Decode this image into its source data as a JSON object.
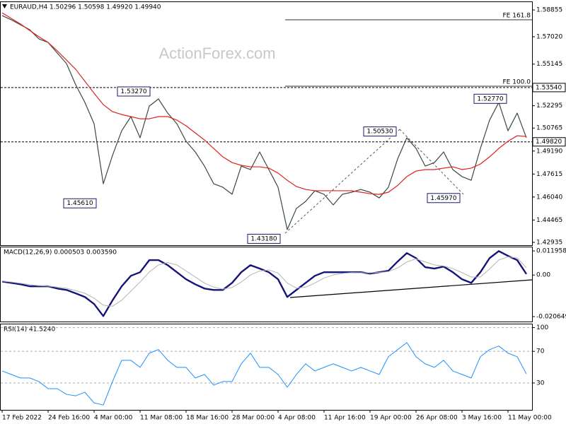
{
  "chart_data": [
    {
      "type": "line",
      "title": "EURAUD,H4  1.50296 1.50598 1.49920 1.49940",
      "watermark": "ActionForex.com",
      "categories": [
        "17 Feb 2022",
        null,
        null,
        null,
        null,
        "24 Feb 16:00",
        null,
        null,
        null,
        null,
        "4 Mar 00:00",
        null,
        null,
        null,
        null,
        "11 Mar 08:00",
        null,
        null,
        null,
        null,
        "18 Mar 16:00",
        null,
        null,
        null,
        null,
        "28 Mar 00:00",
        null,
        null,
        null,
        null,
        "4 Apr 08:00",
        null,
        null,
        null,
        null,
        "11 Apr 16:00",
        null,
        null,
        null,
        null,
        "19 Apr 00:00",
        null,
        null,
        null,
        null,
        "26 Apr 08:00",
        null,
        null,
        null,
        null,
        "3 May 16:00",
        null,
        null,
        null,
        null,
        "11 May 00:00",
        null,
        null
      ],
      "series": [
        {
          "color": "#3b4a3b",
          "values": [
            1.5847,
            1.5818,
            1.5784,
            1.575,
            1.5687,
            1.5663,
            1.559,
            1.5518,
            1.5373,
            1.5252,
            1.5106,
            1.4695,
            1.4889,
            1.5058,
            1.5155,
            1.501,
            1.5227,
            1.5276,
            1.5179,
            1.5106,
            1.4986,
            1.4913,
            1.4816,
            1.4695,
            1.4671,
            1.4623,
            1.4816,
            1.4792,
            1.4913,
            1.4792,
            1.4671,
            1.4381,
            1.4526,
            1.4574,
            1.4647,
            1.4623,
            1.455,
            1.4623,
            1.4637,
            1.4656,
            1.4637,
            1.4598,
            1.4671,
            1.4865,
            1.501,
            1.4937,
            1.4816,
            1.484,
            1.4913,
            1.4792,
            1.4744,
            1.4719,
            1.4937,
            1.5131,
            1.5252,
            1.5058,
            1.5179,
            1.501
          ]
        },
        {
          "color": "#e02020",
          "values": [
            1.5866,
            1.5827,
            1.5789,
            1.5745,
            1.5702,
            1.5663,
            1.5605,
            1.5542,
            1.5479,
            1.5397,
            1.5315,
            1.5237,
            1.5189,
            1.5169,
            1.5155,
            1.514,
            1.514,
            1.5155,
            1.5155,
            1.5131,
            1.5092,
            1.5043,
            1.4995,
            1.4937,
            1.4879,
            1.484,
            1.4821,
            1.4811,
            1.4811,
            1.4802,
            1.4768,
            1.4719,
            1.4676,
            1.4656,
            1.4647,
            1.4647,
            1.4647,
            1.4647,
            1.4647,
            1.4637,
            1.4627,
            1.4622,
            1.4637,
            1.4683,
            1.4744,
            1.4782,
            1.4792,
            1.4792,
            1.4802,
            1.4811,
            1.4792,
            1.4802,
            1.483,
            1.4879,
            1.4937,
            1.4986,
            1.5024,
            1.5019
          ]
        }
      ],
      "ylim": [
        1.4274,
        1.5944
      ],
      "yticks": [
        1.58855,
        {
          "value": 1.5702,
          "label": "1.57020"
        },
        1.55145,
        1.52295,
        1.50765,
        {
          "value": 1.4919,
          "label": "1.49190"
        },
        1.47615,
        {
          "value": 1.4604,
          "label": "1.46040"
        },
        1.44465,
        1.42935
      ],
      "levels": [
        {
          "value": 1.5818,
          "label": "FE 161.8"
        },
        {
          "value": 1.5363,
          "label": "FE 100.0"
        }
      ],
      "price_lines": [
        {
          "value": 1.5354,
          "label": "1.53540"
        },
        {
          "value": 1.4982,
          "label": "1.49820"
        }
      ],
      "callouts": [
        {
          "value": 1.5327,
          "label": "1.53270"
        },
        {
          "value": 1.4561,
          "label": "1.45610"
        },
        {
          "value": 1.4318,
          "label": "1.43180"
        },
        {
          "value": 1.5053,
          "label": "1.50530"
        },
        {
          "value": 1.4597,
          "label": "1.45970"
        },
        {
          "value": 1.5277,
          "label": "1.52770"
        }
      ]
    },
    {
      "type": "line",
      "title": "MACD(12,26,9) 0.000503 0.003590",
      "series": [
        {
          "color": "#14147a",
          "values": [
            -0.0032,
            -0.0039,
            -0.0046,
            -0.0056,
            -0.0056,
            -0.0056,
            -0.0067,
            -0.0074,
            -0.0091,
            -0.0109,
            -0.0144,
            -0.0204,
            -0.0126,
            -0.0056,
            -0.0004,
            0.0014,
            0.0074,
            0.0074,
            0.0049,
            0.0014,
            -0.0021,
            -0.0046,
            -0.0067,
            -0.0074,
            -0.0074,
            -0.0039,
            0.0014,
            0.0049,
            0.0032,
            0.0014,
            -0.0021,
            -0.0109,
            -0.0074,
            -0.0039,
            -0.0004,
            0.0014,
            0.0014,
            0.0014,
            0.0014,
            0.0014,
            0.0007,
            0.0014,
            0.0021,
            0.0067,
            0.0109,
            0.0084,
            0.0039,
            0.0032,
            0.0042,
            0.0014,
            -0.0021,
            -0.0039,
            0.0014,
            0.0084,
            0.0119,
            0.0095,
            0.0074,
            0.0005
          ]
        },
        {
          "color": "#b4b4b4",
          "values": [
            -0.003,
            -0.0035,
            -0.0041,
            -0.0048,
            -0.0053,
            -0.0055,
            -0.006,
            -0.0066,
            -0.0077,
            -0.0091,
            -0.0115,
            -0.015,
            -0.0155,
            -0.0125,
            -0.008,
            -0.0035,
            0.0015,
            0.005,
            0.0062,
            0.005,
            0.002,
            -0.001,
            -0.004,
            -0.006,
            -0.007,
            -0.0062,
            -0.0035,
            0.0,
            0.002,
            0.0025,
            0.001,
            -0.004,
            -0.0065,
            -0.006,
            -0.004,
            -0.0015,
            0.0,
            0.0008,
            0.0012,
            0.0011,
            0.0011,
            0.0013,
            0.0017,
            0.0035,
            0.0065,
            0.008,
            0.0065,
            0.005,
            0.0045,
            0.0032,
            0.0012,
            -0.001,
            -0.001,
            0.003,
            0.0075,
            0.009,
            0.0085,
            0.0036
          ]
        }
      ],
      "ylim": [
        -0.0231,
        0.0141
      ],
      "yticks": [
        0.011958,
        {
          "value": 0,
          "label": "0.00"
        },
        -0.020649
      ]
    },
    {
      "type": "line",
      "title": "RSI(14) 41.5240",
      "series": [
        {
          "color": "#1e90ff",
          "values": [
            45.2,
            40.8,
            36.3,
            36.3,
            31.8,
            22.8,
            22.8,
            15.6,
            13.8,
            18.3,
            4.8,
            2.2,
            31.8,
            58.7,
            58.7,
            49.7,
            67.7,
            72.2,
            58.7,
            49.7,
            49.7,
            36.3,
            40.8,
            27.3,
            31.8,
            31.8,
            54.2,
            67.7,
            49.7,
            49.7,
            40.8,
            24.6,
            40.8,
            54.2,
            45.2,
            49.7,
            54.2,
            49.7,
            45.2,
            49.7,
            45.2,
            40.8,
            63.2,
            72.2,
            81.1,
            63.2,
            54.2,
            49.7,
            58.7,
            45.2,
            40.8,
            36.3,
            63.2,
            72.2,
            76.7,
            67.7,
            63.2,
            41.5
          ]
        }
      ],
      "ylim": [
        -4,
        105
      ],
      "yticks": [
        100,
        70,
        30
      ],
      "grid": true
    }
  ]
}
